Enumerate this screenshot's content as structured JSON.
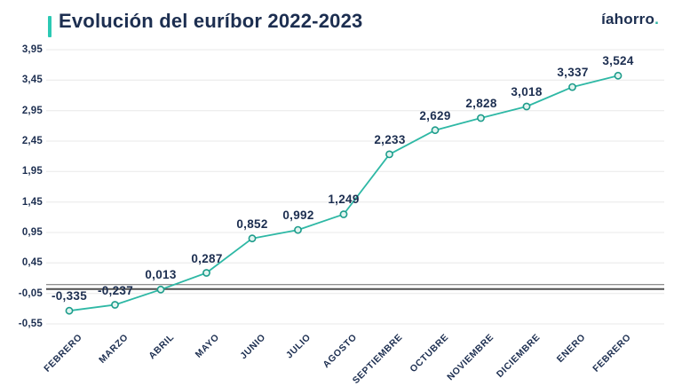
{
  "header": {
    "title": "Evolución del euríbor 2022-2023",
    "logo_text": "íahorro",
    "logo_dot": "."
  },
  "colors": {
    "navy_text": "#1c2e50",
    "accent_bar": "#2cc9b4",
    "line_teal": "#2eb8a5",
    "marker_stroke": "#1d9c8b",
    "marker_fill": "#e3f4f0",
    "gridline": "#e8e8e8",
    "zero_line_dark": "#4f4f4f",
    "zero_line_thin": "#6a6a6a",
    "background": "#ffffff"
  },
  "chart_data": {
    "type": "line",
    "title": "Evolución del euríbor 2022-2023",
    "categories": [
      "FEBRERO",
      "MARZO",
      "ABRIL",
      "MAYO",
      "JUNIO",
      "JULIO",
      "AGOSTO",
      "SEPTIEMBRE",
      "OCTUBRE",
      "NOVIEMBRE",
      "DICIEMBRE",
      "ENERO",
      "FEBRERO"
    ],
    "values": [
      -0.335,
      -0.237,
      0.013,
      0.287,
      0.852,
      0.992,
      1.249,
      2.233,
      2.629,
      2.828,
      3.018,
      3.337,
      3.524
    ],
    "value_labels": [
      "-0,335",
      "-0,237",
      "0,013",
      "0,287",
      "0,852",
      "0,992",
      "1,249",
      "2,233",
      "2,629",
      "2,828",
      "3,018",
      "3,337",
      "3,524"
    ],
    "y_ticks": [
      3.95,
      3.45,
      2.95,
      2.45,
      1.95,
      1.45,
      0.95,
      0.45,
      -0.05,
      -0.55
    ],
    "y_tick_labels": [
      "3,95",
      "3,45",
      "2,95",
      "2,45",
      "1,95",
      "1,45",
      "0,95",
      "0,45",
      "-0,05",
      "-0,55"
    ],
    "ylim": [
      -0.55,
      3.95
    ],
    "grid": true,
    "zero_line": true,
    "legend": "none",
    "xlabel": "",
    "ylabel": ""
  }
}
